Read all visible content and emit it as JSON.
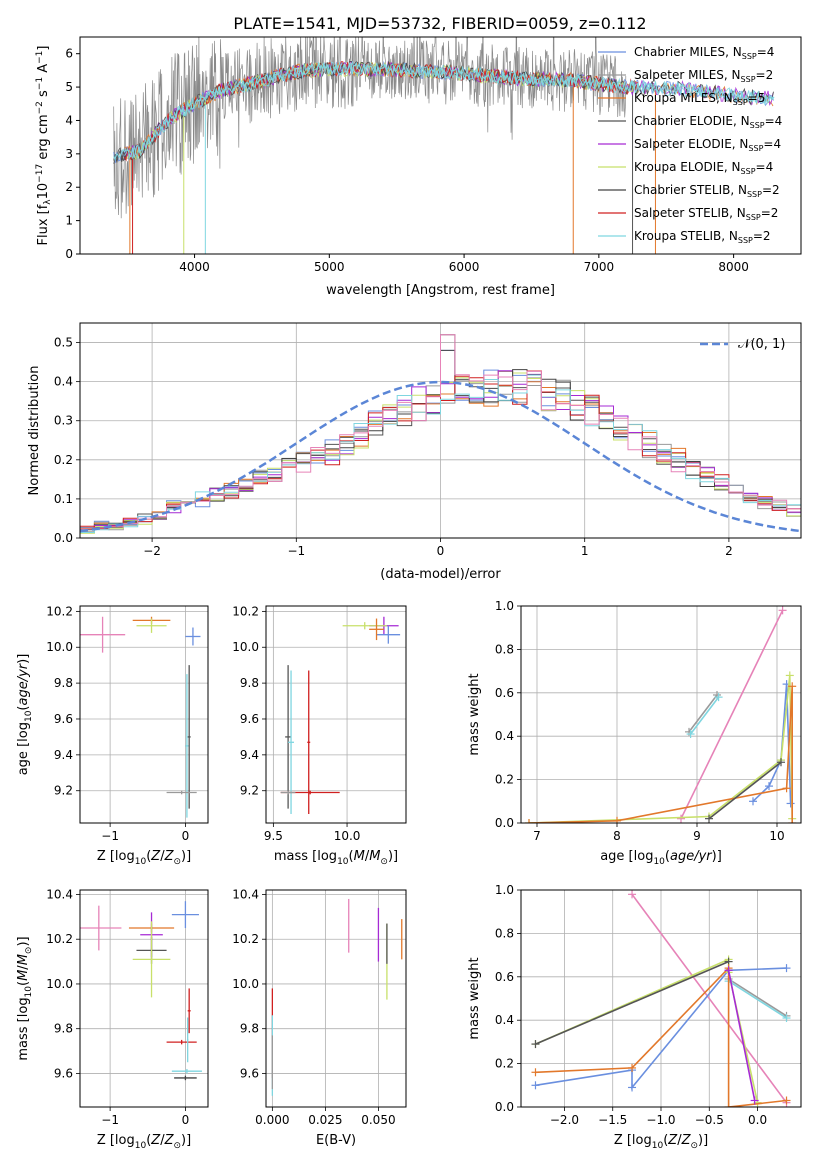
{
  "title": "PLATE=1541, MJD=53732, FIBERID=0059, z=0.112",
  "colors": {
    "chabrier_miles": "#6a8fdf",
    "salpeter_miles": "#9a9a9a",
    "kroupa_miles": "#e2782b",
    "chabrier_elodie": "#555555",
    "salpeter_elodie": "#a62ad4",
    "kroupa_elodie": "#c8e06a",
    "chabrier_stelib": "#444444",
    "salpeter_stelib": "#d02020",
    "kroupa_stelib": "#7fd6e0",
    "extra_pink": "#e683b8",
    "normal_curve": "#5b86d6"
  },
  "chart_data": [
    {
      "type": "line",
      "panel": "spectrum",
      "xlabel": "wavelength [Angstrom, rest frame]",
      "ylabel": "Flux [f_λ 10^-17 erg cm^-2 s^-1 A^-1]",
      "xlim": [
        3150,
        8500
      ],
      "ylim": [
        0,
        6.5
      ],
      "xticks": [
        4000,
        5000,
        6000,
        7000,
        8000
      ],
      "yticks": [
        0,
        1,
        2,
        3,
        4,
        5,
        6
      ],
      "legend_position": "right",
      "legend": [
        {
          "label": "Chabrier MILES, N",
          "sub": "SSP",
          "tail": "=4",
          "color": "#6a8fdf"
        },
        {
          "label": "Salpeter MILES, N",
          "sub": "SSP",
          "tail": "=2",
          "color": "#9a9a9a"
        },
        {
          "label": "Kroupa MILES, N",
          "sub": "SSP",
          "tail": "=5",
          "color": "#e2782b"
        },
        {
          "label": "Chabrier ELODIE, N",
          "sub": "SSP",
          "tail": "=4",
          "color": "#555555"
        },
        {
          "label": "Salpeter ELODIE, N",
          "sub": "SSP",
          "tail": "=4",
          "color": "#a62ad4"
        },
        {
          "label": "Kroupa ELODIE, N",
          "sub": "SSP",
          "tail": "=4",
          "color": "#c8e06a"
        },
        {
          "label": "Chabrier STELIB, N",
          "sub": "SSP",
          "tail": "=2",
          "color": "#444444"
        },
        {
          "label": "Salpeter STELIB, N",
          "sub": "SSP",
          "tail": "=2",
          "color": "#d02020"
        },
        {
          "label": "Kroupa STELIB, N",
          "sub": "SSP",
          "tail": "=2",
          "color": "#7fd6e0"
        }
      ],
      "continuum_model": {
        "x": [
          3400,
          3600,
          3800,
          4000,
          4200,
          4500,
          4800,
          5200,
          5600,
          6000,
          6400,
          6800,
          7200,
          7600,
          8000,
          8300
        ],
        "y": [
          2.9,
          3.1,
          4.0,
          4.5,
          4.9,
          5.2,
          5.5,
          5.55,
          5.5,
          5.4,
          5.25,
          5.2,
          5.0,
          4.95,
          4.75,
          4.65
        ]
      },
      "spikes_down": [
        3520,
        3540,
        3920,
        4080,
        6810,
        7250,
        7420
      ],
      "noise_amplitude": 1.2
    },
    {
      "type": "histogram",
      "panel": "residuals",
      "xlabel": "(data-model)/error",
      "ylabel": "Normed distribution",
      "xlim": [
        -2.5,
        2.5
      ],
      "ylim": [
        0,
        0.55
      ],
      "xticks": [
        -2,
        -1,
        0,
        1,
        2
      ],
      "yticks": [
        0.0,
        0.1,
        0.2,
        0.3,
        0.4,
        0.5
      ],
      "legend_label": "𝒩(0, 1)",
      "legend_position": "top-right",
      "bin_width": 0.1,
      "bins_start": -2.5,
      "base_profile": [
        0.02,
        0.03,
        0.03,
        0.04,
        0.05,
        0.06,
        0.08,
        0.09,
        0.1,
        0.11,
        0.12,
        0.13,
        0.15,
        0.16,
        0.19,
        0.2,
        0.21,
        0.22,
        0.24,
        0.27,
        0.29,
        0.31,
        0.33,
        0.35,
        0.36,
        0.37,
        0.38,
        0.37,
        0.38,
        0.39,
        0.39,
        0.38,
        0.37,
        0.36,
        0.35,
        0.33,
        0.3,
        0.28,
        0.26,
        0.24,
        0.22,
        0.2,
        0.18,
        0.16,
        0.14,
        0.12,
        0.1,
        0.09,
        0.08,
        0.07,
        0.06,
        0.05,
        0.04,
        0.04,
        0.03
      ],
      "series": [
        {
          "color": "#6a8fdf",
          "seed": 1
        },
        {
          "color": "#9a9a9a",
          "seed": 2
        },
        {
          "color": "#e2782b",
          "seed": 3
        },
        {
          "color": "#555555",
          "seed": 4
        },
        {
          "color": "#a62ad4",
          "seed": 5
        },
        {
          "color": "#c8e06a",
          "seed": 6
        },
        {
          "color": "#444444",
          "seed": 7
        },
        {
          "color": "#d02020",
          "seed": 8
        },
        {
          "color": "#7fd6e0",
          "seed": 9
        },
        {
          "color": "#e683b8",
          "seed": 10
        }
      ],
      "peak_bin_value": 0.52
    },
    {
      "type": "errorbar",
      "panel": "age-vs-Z",
      "xlabel": "Z [log10(Z/Z⊙)]",
      "ylabel": "age [log10(age/yr)]",
      "xlim": [
        -1.4,
        0.3
      ],
      "ylim": [
        9.02,
        10.23
      ],
      "xticks": [
        -1,
        0
      ],
      "yticks": [
        9.2,
        9.4,
        9.6,
        9.8,
        10.0,
        10.2
      ],
      "points": [
        {
          "x": -1.1,
          "y": 10.07,
          "xerr": 0.3,
          "yerr": 0.1,
          "color": "#e683b8"
        },
        {
          "x": -0.45,
          "y": 10.15,
          "xerr": 0.25,
          "yerr": 0.02,
          "color": "#e2782b"
        },
        {
          "x": -0.45,
          "y": 10.12,
          "xerr": 0.2,
          "yerr": 0.04,
          "color": "#c8e06a"
        },
        {
          "x": 0.1,
          "y": 10.06,
          "xerr": 0.1,
          "yerr": 0.05,
          "color": "#6a8fdf"
        },
        {
          "x": 0.05,
          "y": 9.5,
          "xerr": 0.02,
          "yerr": 0.4,
          "color": "#555555"
        },
        {
          "x": 0.02,
          "y": 9.45,
          "xerr": 0.02,
          "yerr": 0.4,
          "color": "#7fd6e0"
        },
        {
          "x": -0.05,
          "y": 9.19,
          "xerr": 0.2,
          "yerr": 0.01,
          "color": "#9a9a9a"
        }
      ]
    },
    {
      "type": "errorbar",
      "panel": "age-vs-mass",
      "xlabel": "mass [log10(M/M⊙)]",
      "ylabel": "",
      "xlim": [
        9.45,
        10.4
      ],
      "ylim": [
        9.02,
        10.23
      ],
      "xticks": [
        9.5,
        10.0
      ],
      "yticks": [
        9.2,
        9.4,
        9.6,
        9.8,
        10.0,
        10.2
      ],
      "points": [
        {
          "x": 10.25,
          "y": 10.12,
          "xerr": 0.1,
          "yerr": 0.05,
          "color": "#a62ad4"
        },
        {
          "x": 10.12,
          "y": 10.12,
          "xerr": 0.15,
          "yerr": 0.02,
          "color": "#c8e06a"
        },
        {
          "x": 10.28,
          "y": 10.07,
          "xerr": 0.08,
          "yerr": 0.05,
          "color": "#6a8fdf"
        },
        {
          "x": 10.2,
          "y": 10.1,
          "xerr": 0.05,
          "yerr": 0.06,
          "color": "#e2782b"
        },
        {
          "x": 9.6,
          "y": 9.5,
          "xerr": 0.02,
          "yerr": 0.4,
          "color": "#555555"
        },
        {
          "x": 9.62,
          "y": 9.47,
          "xerr": 0.02,
          "yerr": 0.4,
          "color": "#7fd6e0"
        },
        {
          "x": 9.74,
          "y": 9.47,
          "xerr": 0.01,
          "yerr": 0.4,
          "color": "#d02020"
        },
        {
          "x": 9.75,
          "y": 9.19,
          "xerr": 0.2,
          "yerr": 0.01,
          "color": "#d02020"
        },
        {
          "x": 9.6,
          "y": 9.19,
          "xerr": 0.05,
          "yerr": 0.01,
          "color": "#9a9a9a"
        }
      ]
    },
    {
      "type": "line",
      "panel": "mass-weight-vs-age",
      "xlabel": "age [log10(age/yr)]",
      "ylabel": "mass weight",
      "xlim": [
        6.8,
        10.3
      ],
      "ylim": [
        0,
        1
      ],
      "xticks": [
        7,
        8,
        9,
        10
      ],
      "yticks": [
        0.0,
        0.2,
        0.4,
        0.6,
        0.8,
        1.0
      ],
      "series": [
        {
          "color": "#e683b8",
          "x": [
            8.8,
            10.07
          ],
          "y": [
            0.02,
            0.98
          ]
        },
        {
          "color": "#6a8fdf",
          "x": [
            9.7,
            9.9,
            10.05,
            10.12,
            10.17
          ],
          "y": [
            0.1,
            0.17,
            0.29,
            0.64,
            0.09
          ]
        },
        {
          "color": "#9a9a9a",
          "x": [
            8.9,
            9.25
          ],
          "y": [
            0.42,
            0.59
          ]
        },
        {
          "color": "#7fd6e0",
          "x": [
            8.92,
            9.27
          ],
          "y": [
            0.41,
            0.58
          ]
        },
        {
          "color": "#c8e06a",
          "x": [
            6.9,
            9.15,
            10.05,
            10.16,
            10.19
          ],
          "y": [
            0.0,
            0.03,
            0.29,
            0.68,
            0.02
          ]
        },
        {
          "color": "#e2782b",
          "x": [
            6.9,
            8.0,
            10.12,
            10.19,
            10.19
          ],
          "y": [
            0.0,
            0.01,
            0.16,
            0.63,
            0.0
          ]
        },
        {
          "color": "#555555",
          "x": [
            9.15,
            10.05
          ],
          "y": [
            0.02,
            0.28
          ]
        }
      ]
    },
    {
      "type": "errorbar",
      "panel": "mass-vs-Z",
      "xlabel": "Z [log10(Z/Z⊙)]",
      "ylabel": "mass [log10(M/M⊙)]",
      "xlim": [
        -1.4,
        0.3
      ],
      "ylim": [
        9.45,
        10.42
      ],
      "xticks": [
        -1,
        0
      ],
      "yticks": [
        9.6,
        9.8,
        10.0,
        10.2,
        10.4
      ],
      "points": [
        {
          "x": -1.15,
          "y": 10.25,
          "xerr": 0.3,
          "yerr": 0.1,
          "color": "#e683b8"
        },
        {
          "x": -0.45,
          "y": 10.25,
          "xerr": 0.3,
          "yerr": 0.02,
          "color": "#e2782b"
        },
        {
          "x": -0.45,
          "y": 10.22,
          "xerr": 0.15,
          "yerr": 0.1,
          "color": "#a62ad4"
        },
        {
          "x": -0.45,
          "y": 10.15,
          "xerr": 0.2,
          "yerr": 0.06,
          "color": "#555555"
        },
        {
          "x": -0.45,
          "y": 10.11,
          "xerr": 0.25,
          "yerr": 0.17,
          "color": "#c8e06a"
        },
        {
          "x": 0.0,
          "y": 10.31,
          "xerr": 0.18,
          "yerr": 0.06,
          "color": "#6a8fdf"
        },
        {
          "x": 0.05,
          "y": 9.88,
          "xerr": 0.02,
          "yerr": 0.1,
          "color": "#d02020"
        },
        {
          "x": -0.05,
          "y": 9.74,
          "xerr": 0.2,
          "yerr": 0.01,
          "color": "#d02020"
        },
        {
          "x": 0.02,
          "y": 9.61,
          "xerr": 0.2,
          "yerr": 0.01,
          "color": "#7fd6e0"
        },
        {
          "x": 0.0,
          "y": 9.58,
          "xerr": 0.15,
          "yerr": 0.01,
          "color": "#444444"
        },
        {
          "x": 0.03,
          "y": 9.75,
          "xerr": 0.01,
          "yerr": 0.1,
          "color": "#7fd6e0"
        }
      ]
    },
    {
      "type": "errorbar",
      "panel": "mass-vs-EBV",
      "xlabel": "E(B-V)",
      "ylabel": "",
      "xlim": [
        -0.003,
        0.063
      ],
      "ylim": [
        9.45,
        10.42
      ],
      "xticks": [
        0.0,
        0.025,
        0.05
      ],
      "xtick_labels": [
        "0.000",
        "0.025",
        "0.050"
      ],
      "yticks": [
        9.6,
        9.8,
        10.0,
        10.2,
        10.4
      ],
      "points": [
        {
          "x": 0.036,
          "y": 10.26,
          "xerr": 0,
          "yerr": 0.12,
          "color": "#e683b8"
        },
        {
          "x": 0.05,
          "y": 10.22,
          "xerr": 0,
          "yerr": 0.12,
          "color": "#a62ad4"
        },
        {
          "x": 0.054,
          "y": 10.1,
          "xerr": 0,
          "yerr": 0.17,
          "color": "#c8e06a"
        },
        {
          "x": 0.054,
          "y": 10.18,
          "xerr": 0,
          "yerr": 0.09,
          "color": "#555555"
        },
        {
          "x": 0.061,
          "y": 10.2,
          "xerr": 0,
          "yerr": 0.09,
          "color": "#e2782b"
        },
        {
          "x": 0.0,
          "y": 9.78,
          "xerr": 0,
          "yerr": 0.2,
          "color": "#d02020"
        },
        {
          "x": 0.0,
          "y": 9.68,
          "xerr": 0,
          "yerr": 0.18,
          "color": "#7fd6e0"
        },
        {
          "x": 0.0,
          "y": 9.65,
          "xerr": 0,
          "yerr": 0.12,
          "color": "#9a9a9a"
        }
      ]
    },
    {
      "type": "line",
      "panel": "mass-weight-vs-Z",
      "xlabel": "Z [log10(Z/Z⊙)]",
      "ylabel": "mass weight",
      "xlim": [
        -2.45,
        0.45
      ],
      "ylim": [
        0,
        1
      ],
      "xticks": [
        -2.0,
        -1.5,
        -1.0,
        -0.5,
        0.0
      ],
      "yticks": [
        0.0,
        0.2,
        0.4,
        0.6,
        0.8,
        1.0
      ],
      "series": [
        {
          "color": "#e683b8",
          "x": [
            -1.3,
            0.3
          ],
          "y": [
            0.98,
            0.02
          ]
        },
        {
          "color": "#6a8fdf",
          "x": [
            -2.3,
            -1.3,
            -1.3,
            -0.3,
            0.3
          ],
          "y": [
            0.1,
            0.17,
            0.09,
            0.63,
            0.64
          ]
        },
        {
          "color": "#9a9a9a",
          "x": [
            -0.3,
            0.3
          ],
          "y": [
            0.59,
            0.42
          ]
        },
        {
          "color": "#7fd6e0",
          "x": [
            -0.3,
            0.3
          ],
          "y": [
            0.58,
            0.41
          ]
        },
        {
          "color": "#c8e06a",
          "x": [
            -2.3,
            -0.3,
            -0.3,
            0.0
          ],
          "y": [
            0.29,
            0.68,
            0.62,
            0.02
          ]
        },
        {
          "color": "#555555",
          "x": [
            -2.3,
            -0.3
          ],
          "y": [
            0.29,
            0.67
          ]
        },
        {
          "color": "#e2782b",
          "x": [
            -2.3,
            -1.3,
            -0.3,
            -0.3,
            0.3
          ],
          "y": [
            0.16,
            0.18,
            0.64,
            0.0,
            0.03
          ]
        },
        {
          "color": "#a62ad4",
          "x": [
            -0.3,
            -0.03
          ],
          "y": [
            0.63,
            0.03
          ]
        }
      ]
    }
  ]
}
